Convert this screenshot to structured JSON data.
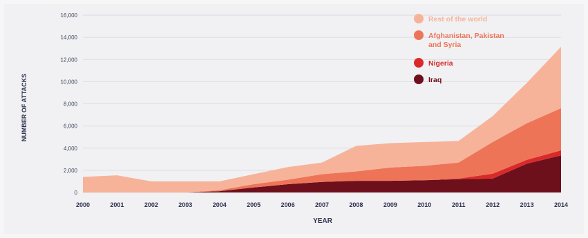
{
  "chart_data": {
    "type": "area",
    "stacked": true,
    "xlabel": "YEAR",
    "ylabel": "NUMBER OF ATTACKS",
    "x": [
      2000,
      2001,
      2002,
      2003,
      2004,
      2005,
      2006,
      2007,
      2008,
      2009,
      2010,
      2011,
      2012,
      2013,
      2014
    ],
    "ylim": [
      0,
      16000
    ],
    "yticks": [
      0,
      2000,
      4000,
      6000,
      8000,
      10000,
      12000,
      14000,
      16000
    ],
    "ytick_labels": [
      "0",
      "2,000",
      "4,000",
      "6,000",
      "8,000",
      "10,000",
      "12,000",
      "14,000",
      "16,000"
    ],
    "grid": true,
    "legend_position": "top-right",
    "series": [
      {
        "name": "Iraq",
        "color": "#6e0f1c",
        "values": [
          0,
          0,
          0,
          0,
          120,
          450,
          750,
          950,
          1050,
          1050,
          1100,
          1200,
          1250,
          2600,
          3350
        ]
      },
      {
        "name": "Nigeria",
        "color": "#d92a2a",
        "values": [
          0,
          0,
          0,
          0,
          0,
          0,
          0,
          0,
          0,
          0,
          0,
          50,
          450,
          350,
          450
        ]
      },
      {
        "name": "Afghanistan, Pakistan and Syria",
        "color": "#ee7458",
        "values": [
          0,
          0,
          0,
          0,
          80,
          300,
          400,
          700,
          850,
          1200,
          1300,
          1450,
          2850,
          3300,
          3800
        ]
      },
      {
        "name": "Rest of the world",
        "color": "#f7b39a",
        "values": [
          1400,
          1550,
          1000,
          1000,
          800,
          900,
          1150,
          1050,
          2300,
          2200,
          2150,
          1950,
          2350,
          3650,
          5550
        ]
      }
    ]
  }
}
